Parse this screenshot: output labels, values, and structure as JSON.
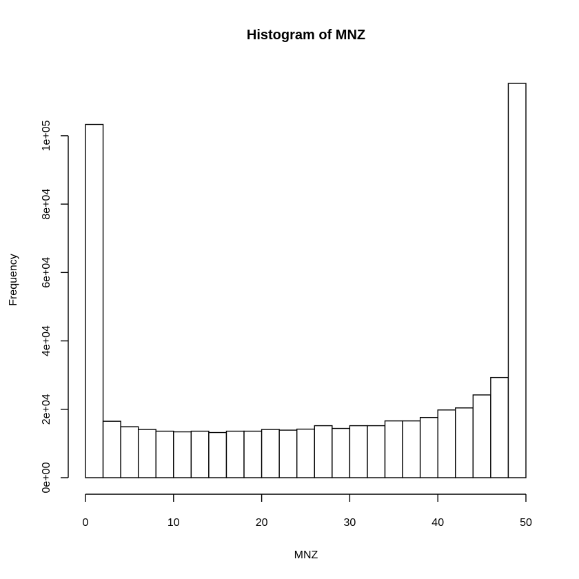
{
  "chart_data": {
    "type": "bar",
    "title": "Histogram of MNZ",
    "xlabel": "MNZ",
    "ylabel": "Frequency",
    "bin_width": 2,
    "bin_starts": [
      0,
      2,
      4,
      6,
      8,
      10,
      12,
      14,
      16,
      18,
      20,
      22,
      24,
      26,
      28,
      30,
      32,
      34,
      36,
      38,
      40,
      42,
      44,
      46,
      48
    ],
    "values": [
      103300,
      16500,
      14900,
      14100,
      13600,
      13400,
      13600,
      13200,
      13600,
      13600,
      14100,
      13900,
      14200,
      15200,
      14400,
      15200,
      15200,
      16600,
      16600,
      17600,
      19800,
      20400,
      24200,
      29300,
      115300
    ],
    "xlim": [
      0,
      50
    ],
    "ylim": [
      0,
      115300
    ],
    "x_ticks": [
      0,
      10,
      20,
      30,
      40,
      50
    ],
    "x_tick_labels": [
      "0",
      "10",
      "20",
      "30",
      "40",
      "50"
    ],
    "y_ticks": [
      0,
      20000,
      40000,
      60000,
      80000,
      100000
    ],
    "y_tick_labels": [
      "0e+00",
      "2e+04",
      "4e+04",
      "6e+04",
      "8e+04",
      "1e+05"
    ],
    "bar_fill": "#ffffff",
    "bar_stroke": "#000000",
    "grid": false,
    "legend": "none"
  }
}
